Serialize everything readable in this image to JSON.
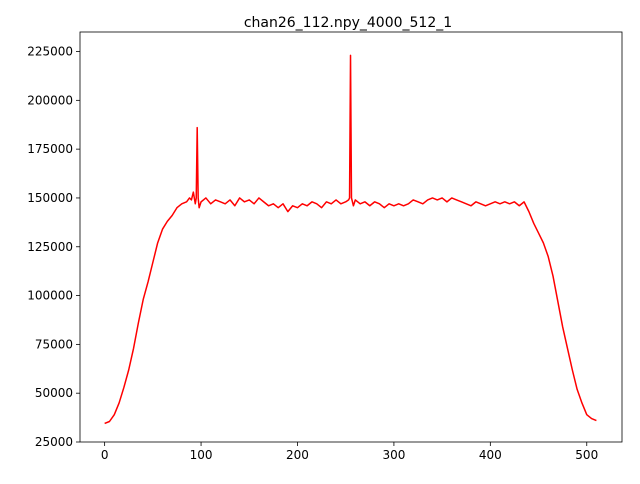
{
  "chart_data": {
    "type": "line",
    "title": "chan26_112.npy_4000_512_1",
    "xlabel": "",
    "ylabel": "",
    "xlim": [
      -25.55,
      536.55
    ],
    "ylim": [
      25000,
      235000
    ],
    "xticks": [
      0,
      100,
      200,
      300,
      400,
      500
    ],
    "yticks": [
      25000,
      50000,
      75000,
      100000,
      125000,
      150000,
      175000,
      200000,
      225000
    ],
    "xtick_labels": [
      "0",
      "100",
      "200",
      "300",
      "400",
      "500"
    ],
    "ytick_labels": [
      "25000",
      "50000",
      "75000",
      "100000",
      "125000",
      "150000",
      "175000",
      "200000",
      "225000"
    ],
    "grid": false,
    "legend": "none",
    "series": [
      {
        "color": "#ff0000",
        "x": [
          0,
          5,
          10,
          15,
          20,
          25,
          30,
          35,
          40,
          45,
          50,
          55,
          60,
          65,
          70,
          75,
          80,
          85,
          88,
          90,
          92,
          94,
          95,
          96,
          97,
          98,
          100,
          105,
          110,
          115,
          120,
          125,
          130,
          135,
          140,
          145,
          150,
          155,
          160,
          165,
          170,
          175,
          180,
          185,
          190,
          195,
          200,
          205,
          210,
          215,
          220,
          225,
          230,
          235,
          240,
          245,
          250,
          253,
          254,
          255,
          256,
          257,
          258,
          260,
          265,
          270,
          275,
          280,
          285,
          290,
          295,
          300,
          305,
          310,
          315,
          320,
          325,
          330,
          335,
          340,
          345,
          350,
          355,
          360,
          365,
          370,
          375,
          380,
          385,
          390,
          395,
          400,
          405,
          410,
          415,
          420,
          425,
          430,
          435,
          440,
          445,
          450,
          455,
          460,
          465,
          470,
          475,
          480,
          485,
          490,
          495,
          500,
          505,
          510
        ],
        "y": [
          34500,
          35500,
          39000,
          45000,
          53000,
          62000,
          73000,
          86000,
          98000,
          107000,
          117000,
          127000,
          134000,
          138000,
          141000,
          145000,
          147000,
          148000,
          150000,
          149000,
          153000,
          147000,
          150000,
          186000,
          150000,
          145000,
          148000,
          150000,
          147000,
          149000,
          148000,
          147000,
          149000,
          146000,
          150000,
          148000,
          149000,
          147000,
          150000,
          148000,
          146000,
          147000,
          145000,
          147000,
          143000,
          146000,
          145000,
          147000,
          146000,
          148000,
          147000,
          145000,
          148000,
          147000,
          149000,
          147000,
          148000,
          149000,
          150000,
          223000,
          150000,
          148000,
          146000,
          149000,
          147000,
          148000,
          146000,
          148000,
          147000,
          145000,
          147000,
          146000,
          147000,
          146000,
          147000,
          149000,
          148000,
          147000,
          149000,
          150000,
          149000,
          150000,
          148000,
          150000,
          149000,
          148000,
          147000,
          146000,
          148000,
          147000,
          146000,
          147000,
          148000,
          147000,
          148000,
          147000,
          148000,
          146000,
          148000,
          143000,
          137000,
          132000,
          127000,
          120000,
          110000,
          97000,
          84000,
          73000,
          62000,
          52000,
          45000,
          39000,
          37000,
          36000
        ]
      }
    ]
  }
}
